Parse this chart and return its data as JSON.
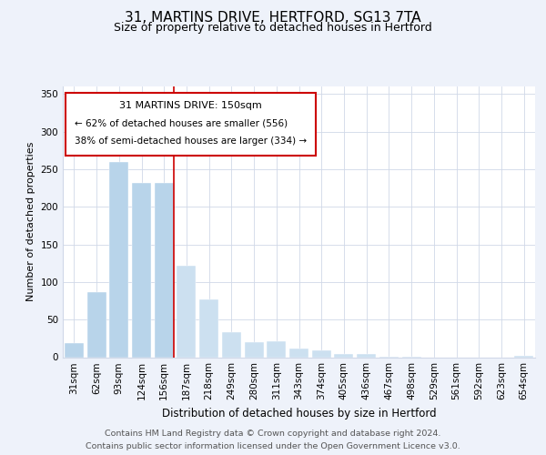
{
  "title": "31, MARTINS DRIVE, HERTFORD, SG13 7TA",
  "subtitle": "Size of property relative to detached houses in Hertford",
  "xlabel": "Distribution of detached houses by size in Hertford",
  "ylabel": "Number of detached properties",
  "categories": [
    "31sqm",
    "62sqm",
    "93sqm",
    "124sqm",
    "156sqm",
    "187sqm",
    "218sqm",
    "249sqm",
    "280sqm",
    "311sqm",
    "343sqm",
    "374sqm",
    "405sqm",
    "436sqm",
    "467sqm",
    "498sqm",
    "529sqm",
    "561sqm",
    "592sqm",
    "623sqm",
    "654sqm"
  ],
  "values": [
    19,
    87,
    260,
    232,
    232,
    122,
    77,
    33,
    20,
    21,
    11,
    9,
    4,
    4,
    1,
    1,
    0,
    0,
    0,
    0,
    2
  ],
  "bar_color_normal": "#b8d4ea",
  "bar_color_right": "#cce0f0",
  "highlight_index": 4,
  "marker_line_color": "#cc0000",
  "ylim": [
    0,
    360
  ],
  "yticks": [
    0,
    50,
    100,
    150,
    200,
    250,
    300,
    350
  ],
  "annotation_title": "31 MARTINS DRIVE: 150sqm",
  "annotation_line1": "← 62% of detached houses are smaller (556)",
  "annotation_line2": "38% of semi-detached houses are larger (334) →",
  "annotation_box_color": "#ffffff",
  "annotation_box_edge_color": "#cc0000",
  "footer_line1": "Contains HM Land Registry data © Crown copyright and database right 2024.",
  "footer_line2": "Contains public sector information licensed under the Open Government Licence v3.0.",
  "background_color": "#eef2fa",
  "plot_background_color": "#ffffff",
  "grid_color": "#d0d8e8",
  "title_fontsize": 11,
  "subtitle_fontsize": 9,
  "ylabel_fontsize": 8,
  "xlabel_fontsize": 8.5,
  "tick_fontsize": 7.5,
  "footer_fontsize": 6.8
}
